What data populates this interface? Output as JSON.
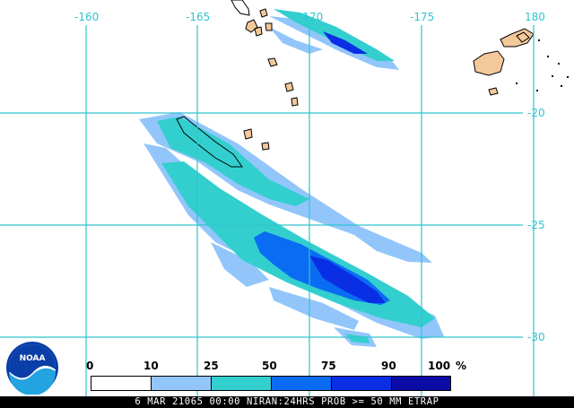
{
  "map": {
    "longitude_labels": [
      "-160",
      "-165",
      "-170",
      "-175",
      "180"
    ],
    "latitude_labels": [
      "-20",
      "-25",
      "-30"
    ],
    "gridline_color": "#31c3cf",
    "land_color": "#f3c89a"
  },
  "legend": {
    "ticks": [
      "0",
      "10",
      "25",
      "50",
      "75",
      "90",
      "100"
    ],
    "unit": "%",
    "colors": [
      "#ffffff",
      "#92c6fb",
      "#33cfcf",
      "#0a6cf3",
      "#0a2ee4",
      "#0b0ca6"
    ]
  },
  "logo": {
    "text": "NOAA"
  },
  "footer": {
    "text": "6 MAR 21065 00:00 NIRAN:24HRS PROB >= 50 MM ETRAP"
  }
}
